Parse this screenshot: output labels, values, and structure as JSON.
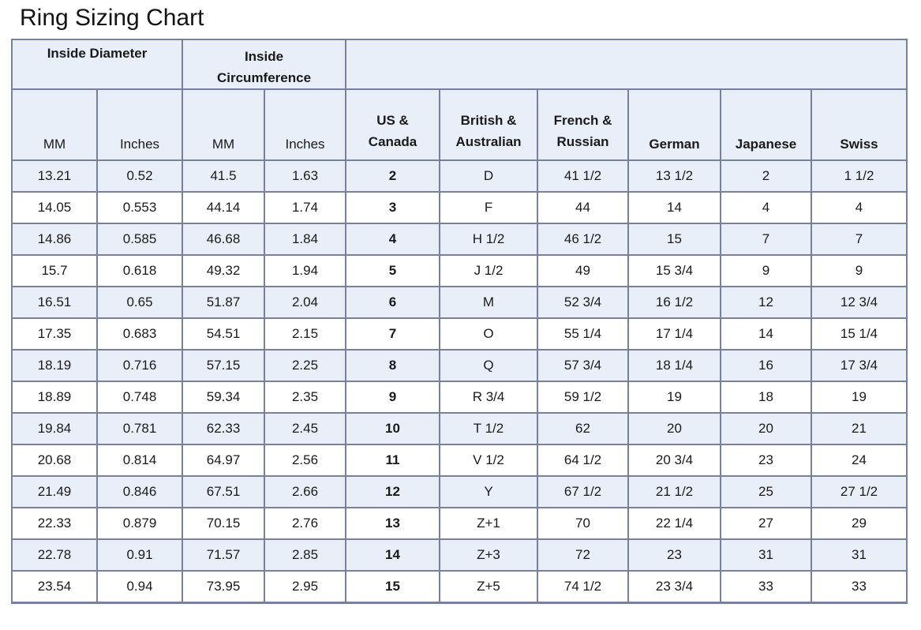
{
  "title": "Ring Sizing Chart",
  "colors": {
    "header_and_alt_row_background": "#e9eff8",
    "row_background": "#ffffff",
    "table_border": "#78819b",
    "text": "#1a1a1a"
  },
  "table": {
    "group_headers": [
      {
        "label": "Inside Diameter",
        "colspan": 2
      },
      {
        "label": "Inside\nCircumference",
        "colspan": 2
      },
      {
        "label": "",
        "colspan": 6
      }
    ],
    "column_headers": [
      "MM",
      "Inches",
      "MM",
      "Inches",
      "US &\nCanada",
      "British &\nAustralian",
      "French &\nRussian",
      "German",
      "Japanese",
      "Swiss"
    ],
    "rows": [
      [
        "13.21",
        "0.52",
        "41.5",
        "1.63",
        "2",
        "D",
        "41 1/2",
        "13 1/2",
        "2",
        "1 1/2"
      ],
      [
        "14.05",
        "0.553",
        "44.14",
        "1.74",
        "3",
        "F",
        "44",
        "14",
        "4",
        "4"
      ],
      [
        "14.86",
        "0.585",
        "46.68",
        "1.84",
        "4",
        "H 1/2",
        "46 1/2",
        "15",
        "7",
        "7"
      ],
      [
        "15.7",
        "0.618",
        "49.32",
        "1.94",
        "5",
        "J 1/2",
        "49",
        "15 3/4",
        "9",
        "9"
      ],
      [
        "16.51",
        "0.65",
        "51.87",
        "2.04",
        "6",
        "M",
        "52 3/4",
        "16 1/2",
        "12",
        "12 3/4"
      ],
      [
        "17.35",
        "0.683",
        "54.51",
        "2.15",
        "7",
        "O",
        "55 1/4",
        "17 1/4",
        "14",
        "15 1/4"
      ],
      [
        "18.19",
        "0.716",
        "57.15",
        "2.25",
        "8",
        "Q",
        "57 3/4",
        "18 1/4",
        "16",
        "17 3/4"
      ],
      [
        "18.89",
        "0.748",
        "59.34",
        "2.35",
        "9",
        "R 3/4",
        "59 1/2",
        "19",
        "18",
        "19"
      ],
      [
        "19.84",
        "0.781",
        "62.33",
        "2.45",
        "10",
        "T 1/2",
        "62",
        "20",
        "20",
        "21"
      ],
      [
        "20.68",
        "0.814",
        "64.97",
        "2.56",
        "11",
        "V 1/2",
        "64 1/2",
        "20 3/4",
        "23",
        "24"
      ],
      [
        "21.49",
        "0.846",
        "67.51",
        "2.66",
        "12",
        "Y",
        "67 1/2",
        "21 1/2",
        "25",
        "27 1/2"
      ],
      [
        "22.33",
        "0.879",
        "70.15",
        "2.76",
        "13",
        "Z+1",
        "70",
        "22 1/4",
        "27",
        "29"
      ],
      [
        "22.78",
        "0.91",
        "71.57",
        "2.85",
        "14",
        "Z+3",
        "72",
        "23",
        "31",
        "31"
      ],
      [
        "23.54",
        "0.94",
        "73.95",
        "2.95",
        "15",
        "Z+5",
        "74 1/2",
        "23 3/4",
        "33",
        "33"
      ]
    ]
  }
}
